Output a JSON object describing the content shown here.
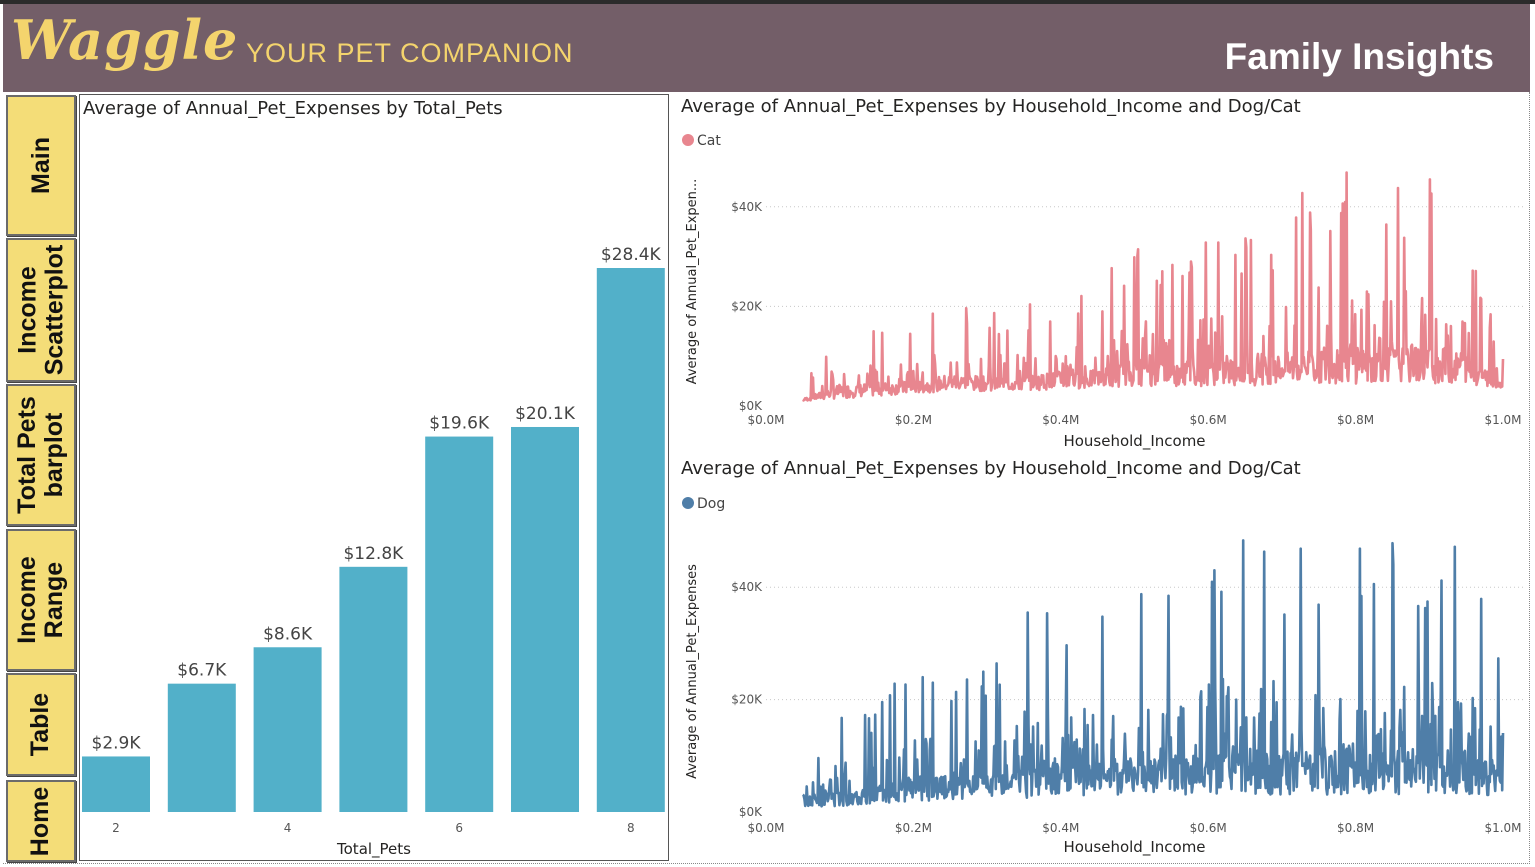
{
  "header": {
    "logo_text": "Waggle",
    "tagline": "YOUR PET COMPANION",
    "page_title": "Family Insights",
    "background_color": "#735e68",
    "accent_color": "#f4d46d"
  },
  "nav": {
    "items": [
      {
        "label": "Main"
      },
      {
        "label": "Income\nScatterplot"
      },
      {
        "label": "Total Pets\nbarplot"
      },
      {
        "label": "Income\nRange"
      },
      {
        "label": "Table"
      },
      {
        "label": "Home"
      }
    ],
    "button_color": "#f4dd78"
  },
  "chart_data": [
    {
      "type": "bar",
      "title": "Average of Annual_Pet_Expenses by Total_Pets",
      "xlabel": "Total_Pets",
      "ylabel": "",
      "categories": [
        2,
        3,
        4,
        5,
        6,
        7,
        8
      ],
      "values": [
        2900,
        6700,
        8600,
        12800,
        19600,
        20100,
        28400
      ],
      "data_labels": [
        "$2.9K",
        "$6.7K",
        "$8.6K",
        "$12.8K",
        "$19.6K",
        "$20.1K",
        "$28.4K"
      ],
      "x_ticks": [
        "2",
        "4",
        "6",
        "8"
      ],
      "color": "#52b0c9",
      "grid": false
    },
    {
      "type": "line",
      "title": "Average of Annual_Pet_Expenses by Household_Income and Dog/Cat",
      "legend": [
        "Cat"
      ],
      "xlabel": "Household_Income",
      "ylabel": "Average of Annual_Pet_Expen...",
      "x_ticks": [
        "$0.0M",
        "$0.2M",
        "$0.4M",
        "$0.6M",
        "$0.8M",
        "$1.0M"
      ],
      "y_ticks": [
        "$0K",
        "$20K",
        "$40K"
      ],
      "xlim": [
        0,
        1000000
      ],
      "ylim": [
        0,
        50000
      ],
      "color": "#e8868f",
      "grid": true,
      "series": [
        {
          "name": "Cat",
          "envelope": {
            "x": [
              50000,
              100000,
              150000,
              200000,
              250000,
              300000,
              350000,
              400000,
              450000,
              500000,
              550000,
              600000,
              650000,
              700000,
              750000,
              800000,
              850000,
              900000,
              950000,
              1000000
            ],
            "low": [
              1000,
              1500,
              2000,
              2500,
              3000,
              3000,
              3000,
              3500,
              3500,
              4000,
              4000,
              4000,
              4000,
              4500,
              4500,
              4500,
              4500,
              4500,
              4500,
              3500
            ],
            "high": [
              3500,
              17000,
              17000,
              16000,
              22000,
              19000,
              20000,
              23000,
              24000,
              36000,
              30000,
              37000,
              34000,
              38000,
              48000,
              47000,
              46000,
              47000,
              37000,
              10000
            ]
          }
        }
      ]
    },
    {
      "type": "line",
      "title": "Average of Annual_Pet_Expenses by Household_Income and Dog/Cat",
      "legend": [
        "Dog"
      ],
      "xlabel": "Household_Income",
      "ylabel": "Average of Annual_Pet_Expenses",
      "x_ticks": [
        "$0.0M",
        "$0.2M",
        "$0.4M",
        "$0.6M",
        "$0.8M",
        "$1.0M"
      ],
      "y_ticks": [
        "$0K",
        "$20K",
        "$40K"
      ],
      "xlim": [
        0,
        1000000
      ],
      "ylim": [
        0,
        50000
      ],
      "color": "#4f7ea8",
      "grid": true,
      "series": [
        {
          "name": "Dog",
          "envelope": {
            "x": [
              50000,
              100000,
              150000,
              200000,
              250000,
              300000,
              350000,
              400000,
              450000,
              500000,
              550000,
              600000,
              650000,
              700000,
              750000,
              800000,
              850000,
              900000,
              950000,
              1000000
            ],
            "low": [
              1000,
              1000,
              1500,
              2000,
              2000,
              2500,
              2500,
              3000,
              3000,
              3000,
              3000,
              3000,
              3000,
              3000,
              3000,
              3000,
              3000,
              3000,
              3000,
              3000
            ],
            "high": [
              9000,
              19000,
              19000,
              27000,
              27000,
              25000,
              38000,
              37000,
              38000,
              40000,
              42000,
              49000,
              49000,
              48000,
              49000,
              49000,
              48000,
              49000,
              48000,
              29000
            ]
          }
        }
      ]
    }
  ]
}
